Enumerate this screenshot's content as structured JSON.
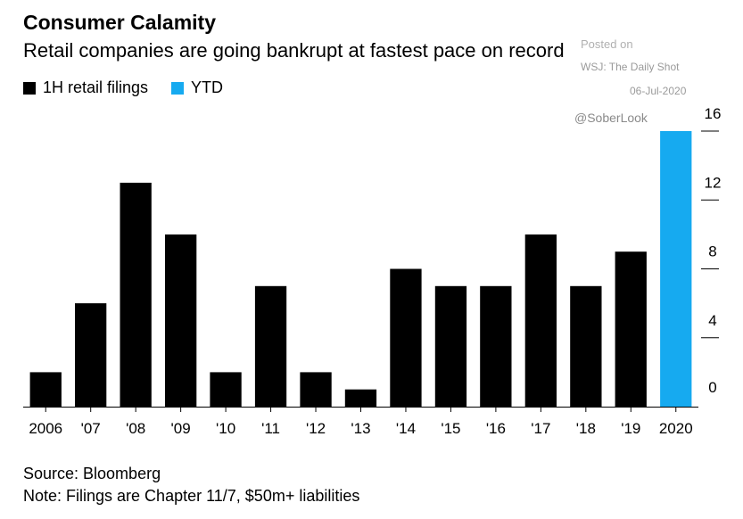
{
  "header": {
    "title": "Consumer Calamity",
    "subtitle": "Retail companies are going bankrupt at fastest pace on record"
  },
  "legend": {
    "items": [
      {
        "label": "1H retail filings",
        "color": "#000000"
      },
      {
        "label": "YTD",
        "color": "#16aaf0"
      }
    ]
  },
  "watermark": {
    "posted": "Posted on",
    "source": "WSJ: The Daily Shot",
    "date": "06-Jul-2020",
    "handle": "@SoberLook"
  },
  "footer": {
    "source": "Source: Bloomberg",
    "note": "Note: Filings are Chapter 11/7, $50m+ liabilities"
  },
  "chart_data": {
    "type": "bar",
    "title": "Consumer Calamity",
    "subtitle": "Retail companies are going bankrupt at fastest pace on record",
    "categories": [
      "2006",
      "'07",
      "'08",
      "'09",
      "'10",
      "'11",
      "'12",
      "'13",
      "'14",
      "'15",
      "'16",
      "'17",
      "'18",
      "'19",
      "2020"
    ],
    "series": [
      {
        "name": "1H retail filings",
        "color": "#000000",
        "values": [
          2,
          6,
          13,
          10,
          2,
          7,
          2,
          1,
          8,
          7,
          7,
          10,
          7,
          9,
          null
        ]
      },
      {
        "name": "YTD",
        "color": "#16aaf0",
        "values": [
          null,
          null,
          null,
          null,
          null,
          null,
          null,
          null,
          null,
          null,
          null,
          null,
          null,
          null,
          16
        ]
      }
    ],
    "yticks": [
      0,
      4,
      8,
      12,
      16
    ],
    "ylim": [
      0,
      16
    ],
    "yaxis_side": "right",
    "grid": false,
    "legend_position": "top-left",
    "xlabel": "",
    "ylabel": ""
  }
}
